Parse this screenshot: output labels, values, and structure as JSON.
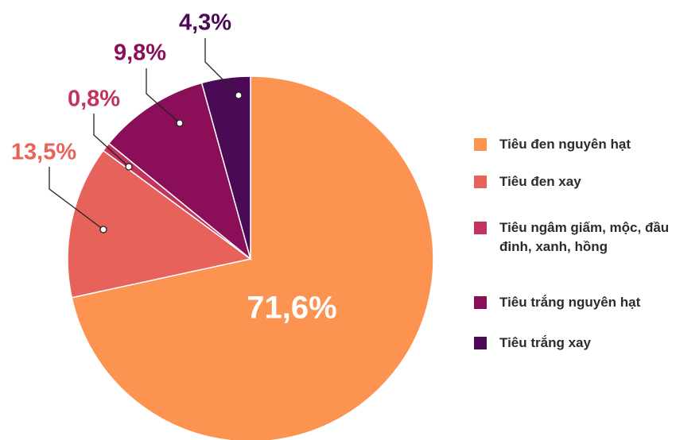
{
  "chart_data": {
    "type": "pie",
    "categories": [
      "Tiêu đen nguyên hạt",
      "Tiêu đen xay",
      "Tiêu ngâm giấm, mộc, đầu đinh, xanh, hồng",
      "Tiêu trắng nguyên hạt",
      "Tiêu trắng xay"
    ],
    "values": [
      71.6,
      13.5,
      0.8,
      9.8,
      4.3
    ],
    "value_labels": [
      "71,6%",
      "13,5%",
      "0,8%",
      "9,8%",
      "4,3%"
    ],
    "colors": [
      "#fd9350",
      "#e7625a",
      "#c2345e",
      "#8a0f58",
      "#4b0a55"
    ]
  }
}
